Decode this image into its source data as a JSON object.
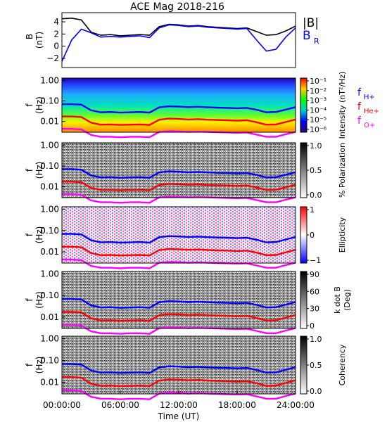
{
  "title": "ACE Mag 2018-216",
  "xlabel": "Time (UT)",
  "x_ticks": [
    "00:00:00",
    "06:00:00",
    "12:00:00",
    "18:00:00",
    "24:00:00"
  ],
  "colors": {
    "btotal": "#000000",
    "br": "#0000ff",
    "fH": "#0000ff",
    "fHe": "#ff0000",
    "fO": "#ff00ff"
  },
  "chart_data": [
    {
      "type": "line",
      "panel": "field",
      "ylabel_line1": "B",
      "ylabel_line2": "(nT)",
      "ylim": [
        -3.5,
        5.5
      ],
      "y_ticks": [
        "4",
        "2",
        "0",
        "−2"
      ],
      "x": [
        0,
        1,
        2,
        3,
        4,
        5,
        6,
        7,
        8,
        9,
        10,
        11,
        12,
        13,
        14,
        15,
        16,
        17,
        18,
        19,
        20,
        21,
        22,
        23,
        24
      ],
      "series": [
        {
          "name": "|B|",
          "values": [
            4.5,
            4.6,
            4.3,
            2.3,
            1.8,
            1.9,
            1.7,
            1.8,
            1.9,
            1.8,
            3.2,
            3.6,
            3.5,
            3.3,
            3.4,
            3.2,
            3.1,
            3.0,
            2.9,
            3.0,
            2.4,
            1.8,
            1.9,
            2.5,
            3.3
          ]
        },
        {
          "name": "B_R",
          "values": [
            -2.5,
            1.0,
            2.8,
            2.2,
            1.5,
            1.6,
            1.5,
            1.6,
            1.7,
            1.4,
            3.0,
            3.5,
            3.4,
            3.2,
            3.3,
            3.1,
            3.0,
            2.9,
            2.8,
            2.9,
            1.0,
            -0.8,
            -0.5,
            1.5,
            3.0
          ]
        }
      ],
      "legend": [
        "|B|",
        "B",
        "R"
      ]
    },
    {
      "type": "heatmap",
      "panel": "intensity",
      "ylabel": "f (Hz)",
      "y_ticks": [
        "1.00",
        "0.10",
        "0.01"
      ],
      "cbar_label": "Intensity (nT²/Hz)",
      "cbar_ticks": [
        "10⁻¹",
        "10⁻²",
        "10⁻³",
        "10⁻⁴",
        "10⁻⁵",
        "10⁻⁶"
      ],
      "legend": [
        "f",
        "H+",
        "f",
        "He+",
        "f",
        "O+"
      ]
    },
    {
      "type": "heatmap",
      "panel": "polarization",
      "ylabel": "f (Hz)",
      "y_ticks": [
        "1.00",
        "0.10",
        "0.01"
      ],
      "cbar_label": "% Polarization",
      "cbar_ticks": [
        "1.0",
        "0.5",
        "0.0"
      ]
    },
    {
      "type": "heatmap",
      "panel": "ellipticity",
      "ylabel": "f (Hz)",
      "y_ticks": [
        "1.00",
        "0.10",
        "0.01"
      ],
      "cbar_label": "Ellipticity",
      "cbar_ticks": [
        "1",
        "0",
        "−1"
      ]
    },
    {
      "type": "heatmap",
      "panel": "kdotb",
      "ylabel": "f (Hz)",
      "y_ticks": [
        "1.00",
        "0.10",
        "0.01"
      ],
      "cbar_label_line1": "k dot B",
      "cbar_label_line2": "(Deg)",
      "cbar_ticks": [
        "90",
        "60",
        "30",
        "0"
      ]
    },
    {
      "type": "heatmap",
      "panel": "coherency",
      "ylabel": "f (Hz)",
      "y_ticks": [
        "1.00",
        "0.10",
        "0.01"
      ],
      "cbar_label": "Coherency",
      "cbar_ticks": [
        "1.0",
        "0.5",
        "0.0"
      ]
    }
  ],
  "gyrofrequency_lines": {
    "x": [
      0,
      1,
      2,
      3,
      4,
      5,
      6,
      7,
      8,
      9,
      10,
      11,
      12,
      13,
      14,
      15,
      16,
      17,
      18,
      19,
      20,
      21,
      22,
      23,
      24
    ],
    "fH": [
      0.07,
      0.07,
      0.066,
      0.035,
      0.028,
      0.029,
      0.027,
      0.028,
      0.029,
      0.027,
      0.049,
      0.055,
      0.053,
      0.05,
      0.052,
      0.049,
      0.047,
      0.046,
      0.044,
      0.046,
      0.037,
      0.028,
      0.029,
      0.038,
      0.05
    ],
    "fHe": [
      0.0175,
      0.0175,
      0.0165,
      0.0088,
      0.007,
      0.0072,
      0.0068,
      0.007,
      0.0072,
      0.0068,
      0.0122,
      0.0138,
      0.0133,
      0.0125,
      0.013,
      0.0122,
      0.0118,
      0.0115,
      0.011,
      0.0115,
      0.0092,
      0.007,
      0.0072,
      0.0095,
      0.0125
    ],
    "fO": [
      0.0044,
      0.0044,
      0.0041,
      0.0022,
      0.0018,
      0.0018,
      0.0017,
      0.0018,
      0.0018,
      0.0017,
      0.0031,
      0.0034,
      0.0033,
      0.0031,
      0.0032,
      0.0031,
      0.003,
      0.0029,
      0.0028,
      0.0029,
      0.0023,
      0.0018,
      0.0018,
      0.0024,
      0.0031
    ]
  }
}
